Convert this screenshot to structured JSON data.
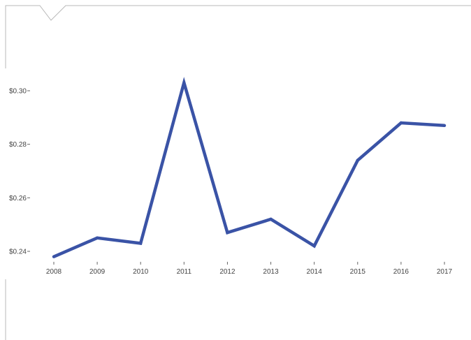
{
  "colors": {
    "line": "#3a53a6",
    "frame": "#b8b8b8",
    "axis_text": "#444444",
    "background": "#ffffff"
  },
  "chart_data": {
    "type": "line",
    "title": "",
    "xlabel": "",
    "ylabel": "",
    "x": [
      "2008",
      "2009",
      "2010",
      "2011",
      "2012",
      "2013",
      "2014",
      "2015",
      "2016",
      "2017"
    ],
    "series": [
      {
        "values": [
          0.238,
          0.245,
          0.243,
          0.303,
          0.247,
          0.252,
          0.242,
          0.274,
          0.288,
          0.287
        ]
      }
    ],
    "y_ticks": [
      0.24,
      0.26,
      0.28,
      0.3
    ],
    "y_tick_labels": [
      "$0.24",
      "$0.26",
      "$0.28",
      "$0.30"
    ],
    "ylim": [
      0.24,
      0.3
    ],
    "grid": false,
    "legend": "none"
  }
}
